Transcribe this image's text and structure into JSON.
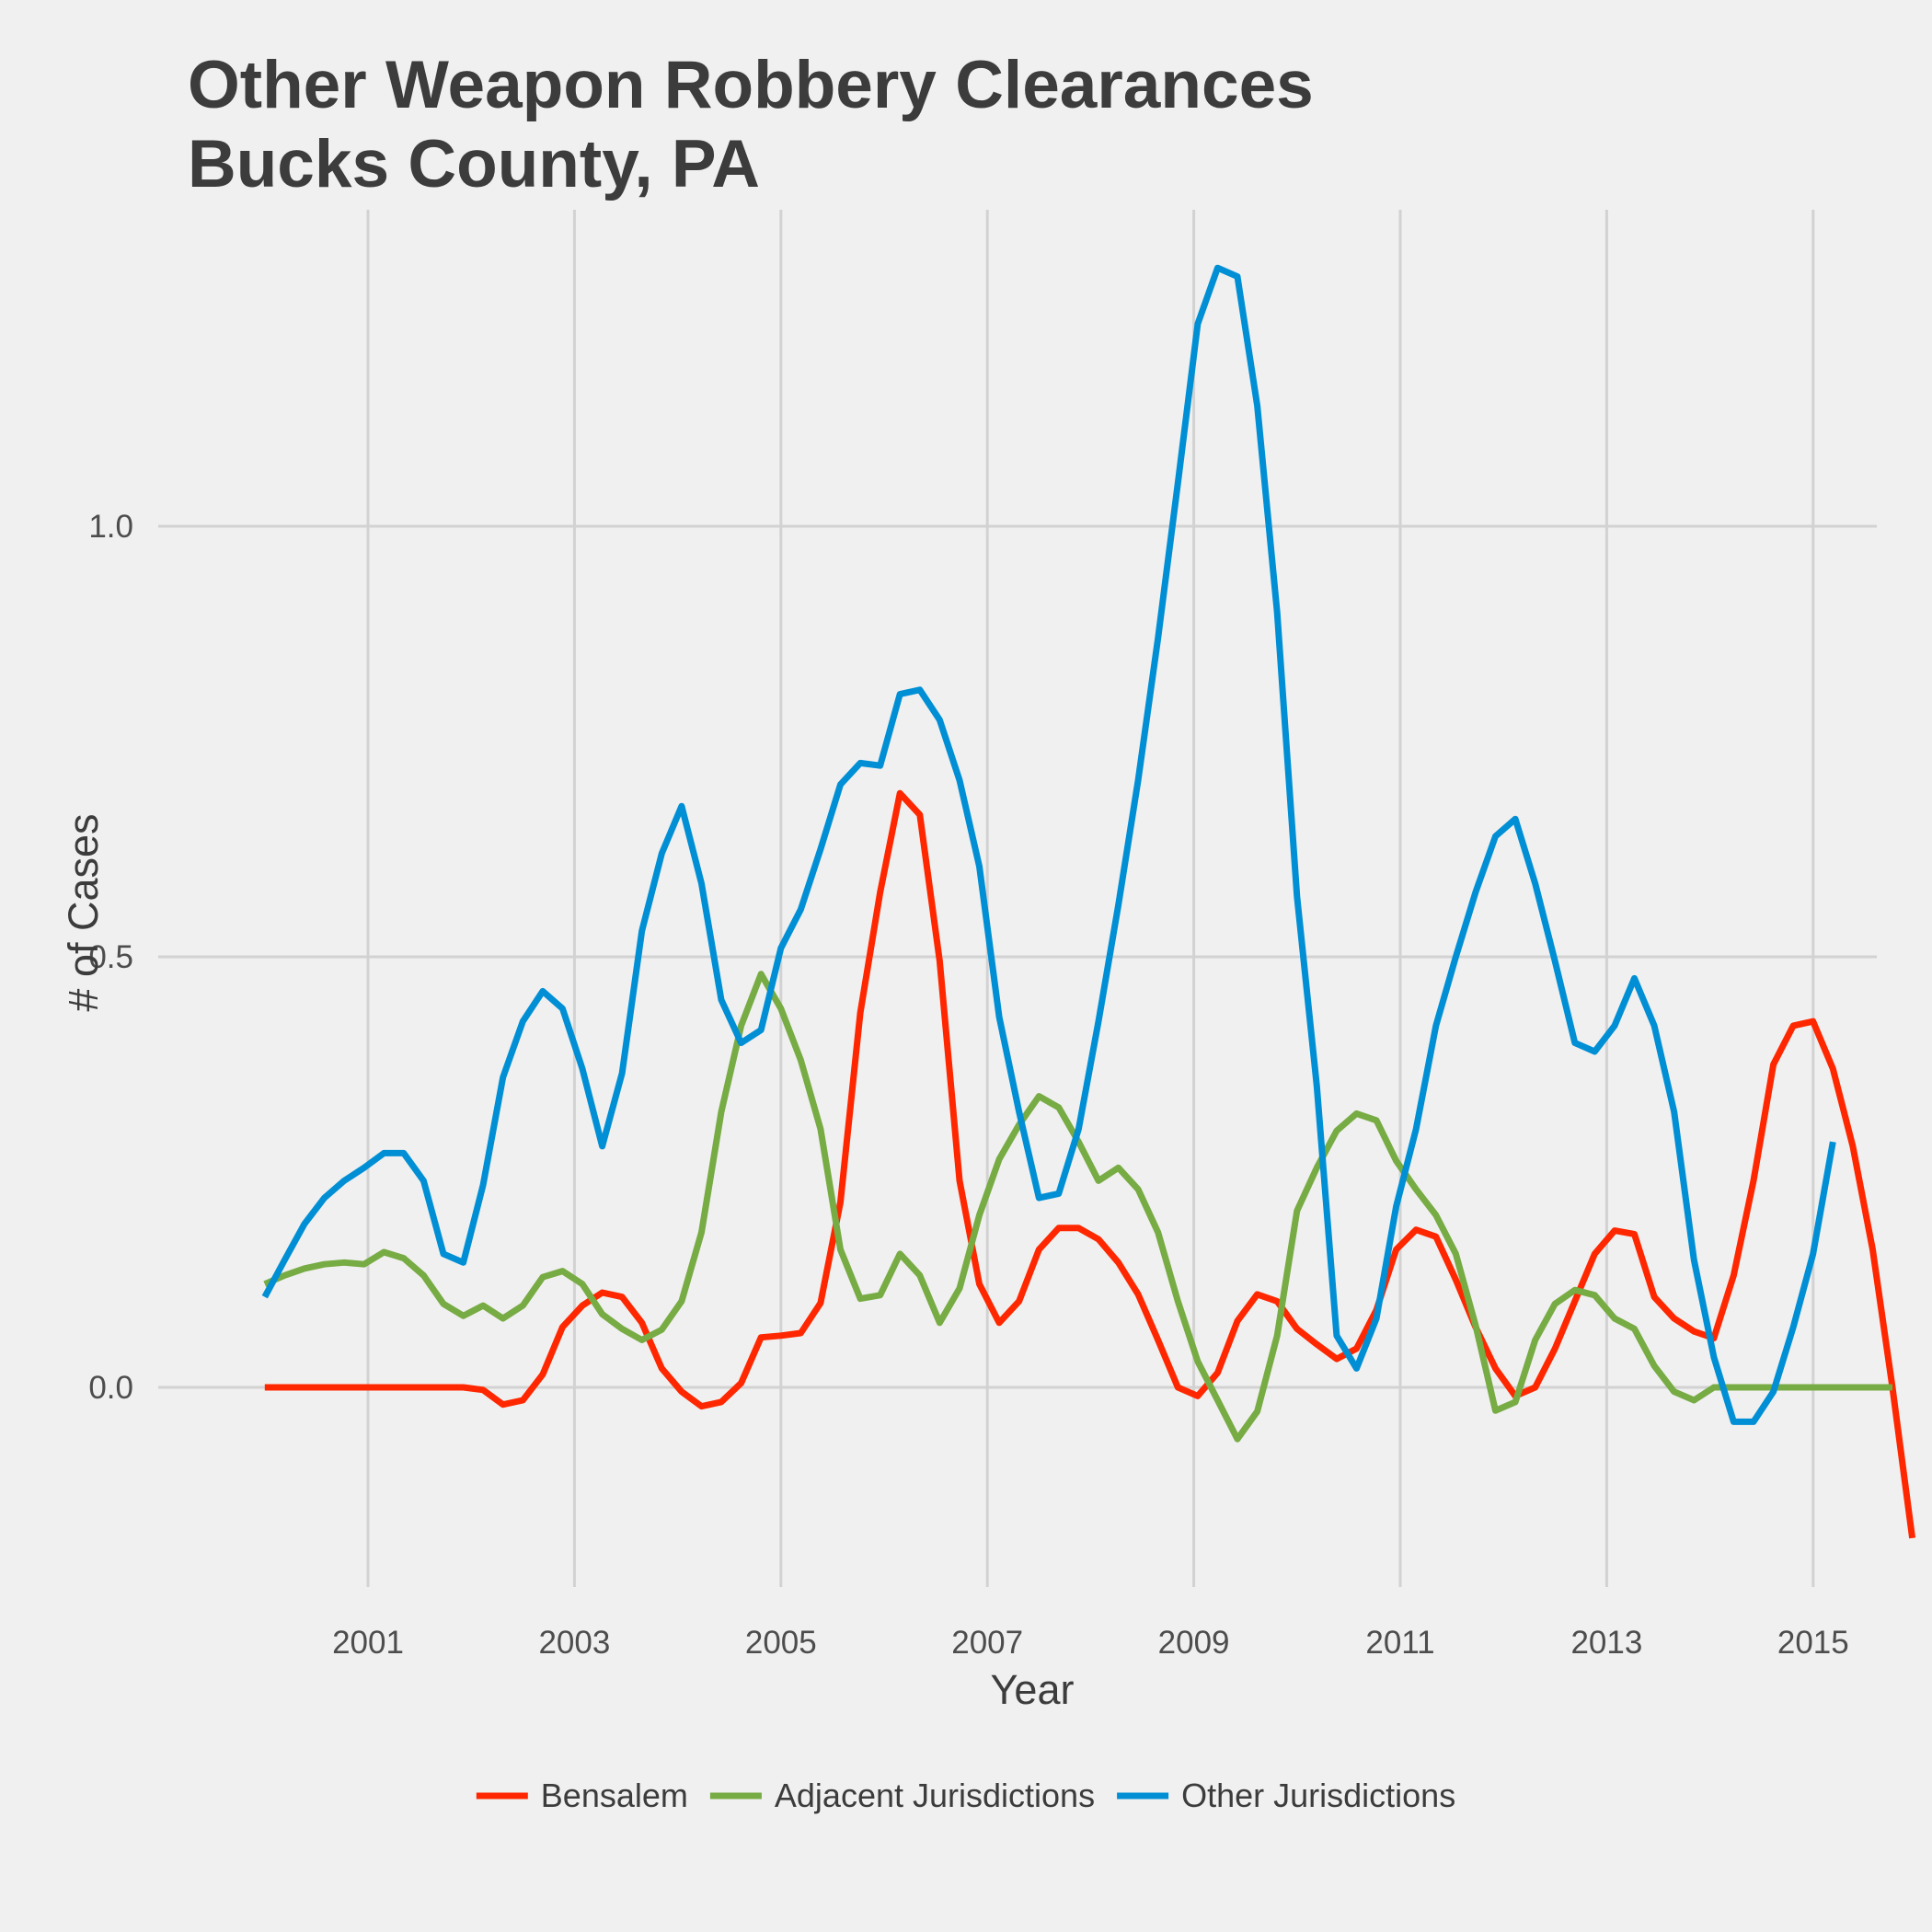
{
  "chart_data": {
    "type": "line",
    "title_line1": "Other Weapon Robbery Clearances",
    "title_line2": "Bucks County, PA",
    "xlabel": "Year",
    "ylabel": "# of Cases",
    "xlim": [
      1999.5,
      2015.5
    ],
    "ylim": [
      -0.24,
      1.37
    ],
    "x_ticks": [
      2001,
      2003,
      2005,
      2007,
      2009,
      2011,
      2013,
      2015
    ],
    "y_ticks": [
      0.0,
      0.5,
      1.0
    ],
    "y_tick_labels": [
      "0.0",
      "0.5",
      "1.0"
    ],
    "grid": true,
    "legend_position": "bottom",
    "x_start": 2000.0,
    "x_step": 0.1923,
    "series": [
      {
        "name": "Bensalem",
        "color": "#ff2700",
        "values": [
          0.0,
          0.0,
          0.0,
          0.0,
          0.0,
          0.0,
          0.0,
          0.0,
          0.0,
          0.0,
          0.0,
          -0.003,
          -0.02,
          -0.015,
          0.015,
          0.07,
          0.095,
          0.11,
          0.105,
          0.075,
          0.022,
          -0.005,
          -0.022,
          -0.017,
          0.005,
          0.058,
          0.06,
          0.063,
          0.098,
          0.215,
          0.435,
          0.575,
          0.69,
          0.665,
          0.495,
          0.24,
          0.12,
          0.075,
          0.1,
          0.16,
          0.185,
          0.185,
          0.172,
          0.145,
          0.108,
          0.055,
          0.0,
          -0.01,
          0.017,
          0.077,
          0.108,
          0.1,
          0.068,
          0.05,
          0.033,
          0.045,
          0.09,
          0.16,
          0.183,
          0.175,
          0.125,
          0.07,
          0.022,
          -0.01,
          0.0,
          0.045,
          0.1,
          0.155,
          0.182,
          0.178,
          0.105,
          0.08,
          0.065,
          0.057,
          0.13,
          0.24,
          0.375,
          0.42,
          0.425,
          0.37,
          0.28,
          0.16,
          0.0,
          -0.175
        ]
      },
      {
        "name": "Adjacent Jurisdictions",
        "color": "#77ab43",
        "values": [
          0.12,
          0.13,
          0.138,
          0.143,
          0.145,
          0.143,
          0.157,
          0.15,
          0.13,
          0.097,
          0.083,
          0.095,
          0.08,
          0.095,
          0.128,
          0.135,
          0.12,
          0.085,
          0.068,
          0.055,
          0.067,
          0.1,
          0.18,
          0.32,
          0.42,
          0.48,
          0.44,
          0.38,
          0.3,
          0.16,
          0.103,
          0.107,
          0.155,
          0.13,
          0.075,
          0.115,
          0.2,
          0.265,
          0.305,
          0.338,
          0.325,
          0.285,
          0.24,
          0.255,
          0.23,
          0.18,
          0.1,
          0.03,
          -0.015,
          -0.06,
          -0.028,
          0.06,
          0.205,
          0.255,
          0.298,
          0.318,
          0.31,
          0.263,
          0.23,
          0.2,
          0.155,
          0.072,
          -0.027,
          -0.017,
          0.055,
          0.097,
          0.113,
          0.107,
          0.08,
          0.068,
          0.025,
          -0.005,
          -0.015,
          -0.0,
          0.0,
          0.0,
          0.0,
          0.0,
          0.0,
          0.0,
          0.0,
          0.0,
          0.0
        ]
      },
      {
        "name": "Other Jurisdictions",
        "color": "#008fd5",
        "values": [
          0.105,
          0.148,
          0.19,
          0.22,
          0.24,
          0.255,
          0.272,
          0.272,
          0.24,
          0.155,
          0.145,
          0.235,
          0.36,
          0.425,
          0.46,
          0.44,
          0.37,
          0.28,
          0.365,
          0.53,
          0.62,
          0.675,
          0.585,
          0.45,
          0.4,
          0.415,
          0.51,
          0.555,
          0.625,
          0.7,
          0.725,
          0.722,
          0.805,
          0.81,
          0.775,
          0.705,
          0.605,
          0.43,
          0.32,
          0.22,
          0.225,
          0.3,
          0.425,
          0.56,
          0.705,
          0.87,
          1.05,
          1.235,
          1.3,
          1.29,
          1.14,
          0.9,
          0.57,
          0.35,
          0.06,
          0.022,
          0.08,
          0.21,
          0.3,
          0.42,
          0.5,
          0.575,
          0.64,
          0.66,
          0.585,
          0.495,
          0.4,
          0.39,
          0.42,
          0.475,
          0.42,
          0.32,
          0.148,
          0.035,
          -0.04,
          -0.04,
          -0.005,
          0.07,
          0.155,
          0.285
        ]
      }
    ]
  }
}
